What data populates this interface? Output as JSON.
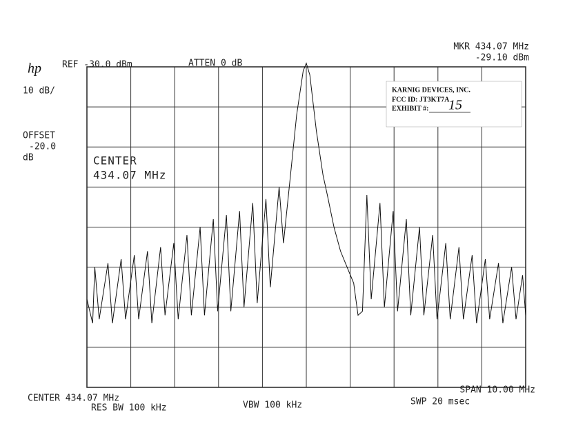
{
  "chart_data": {
    "type": "line",
    "annotations": [
      "hp",
      "REF -30.0 dBm",
      "ATTEN 0 dB",
      "MKR 434.07 MHz",
      "-29.10 dBm",
      "10 dB/",
      "OFFSET",
      "-20.0",
      "dB",
      "CENTER",
      "434.07 MHz",
      "CENTER 434.07 MHz",
      "RES BW 100 kHz",
      "VBW 100 kHz",
      "SPAN 10.00 MHz",
      "SWP 20 msec",
      "KARNIG DEVICES, INC.",
      "FCC ID:  JT3KT7A",
      "EXHIBIT #:",
      "15"
    ],
    "x": [
      429.07,
      429.2,
      429.25,
      429.35,
      429.55,
      429.65,
      429.85,
      429.95,
      430.15,
      430.25,
      430.45,
      430.55,
      430.75,
      430.85,
      431.05,
      431.15,
      431.35,
      431.45,
      431.65,
      431.75,
      431.95,
      432.05,
      432.25,
      432.35,
      432.55,
      432.65,
      432.85,
      432.95,
      433.15,
      433.25,
      433.45,
      433.55,
      433.7,
      433.85,
      434.0,
      434.07,
      434.15,
      434.3,
      434.45,
      434.55,
      434.7,
      434.85,
      435.0,
      435.15,
      435.25,
      435.35,
      435.45,
      435.55,
      435.75,
      435.85,
      436.05,
      436.15,
      436.35,
      436.45,
      436.65,
      436.75,
      436.95,
      437.05,
      437.25,
      437.35,
      437.55,
      437.65,
      437.85,
      437.95,
      438.15,
      438.25,
      438.45,
      438.55,
      438.75,
      438.85,
      439.0,
      439.07
    ],
    "series": [
      {
        "color": "#111111",
        "values": [
          -88,
          -94,
          -80,
          -93,
          -79,
          -94,
          -78,
          -93,
          -77,
          -93,
          -76,
          -94,
          -75,
          -92,
          -74,
          -93,
          -72,
          -92,
          -70,
          -92,
          -68,
          -91,
          -67,
          -91,
          -66,
          -90,
          -64,
          -89,
          -63,
          -85,
          -60,
          -74,
          -58,
          -42,
          -31,
          -29.1,
          -32,
          -46,
          -57,
          -62,
          -70,
          -76,
          -80,
          -84,
          -92,
          -91,
          -62,
          -88,
          -64,
          -90,
          -66,
          -91,
          -68,
          -92,
          -70,
          -92,
          -72,
          -93,
          -74,
          -93,
          -75,
          -93,
          -77,
          -94,
          -78,
          -93,
          -79,
          -94,
          -80,
          -93,
          -82,
          -92
        ]
      }
    ],
    "xlim": [
      429.07,
      439.07
    ],
    "ylim": [
      -110,
      -30
    ],
    "grid": true
  }
}
